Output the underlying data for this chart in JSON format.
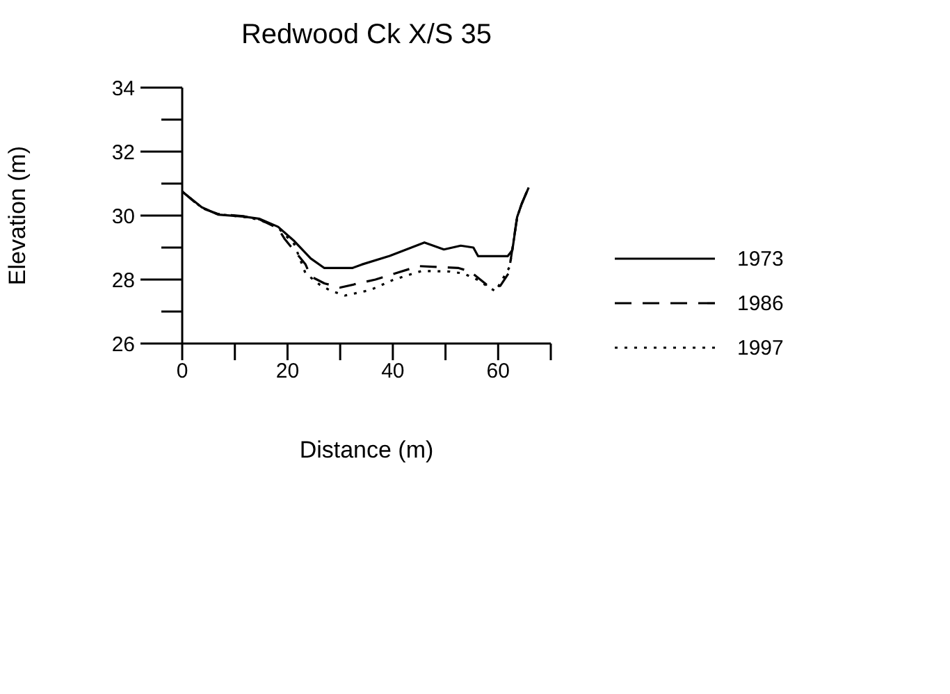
{
  "chart_data": {
    "type": "line",
    "title": "Redwood Ck X/S 35",
    "xlabel": "Distance (m)",
    "ylabel": "Elevation (m)",
    "xlim": [
      0,
      70
    ],
    "xticks": [
      0,
      {
        "value": 10,
        "label": null
      },
      20,
      {
        "value": 30,
        "label": null
      },
      40,
      {
        "value": 50,
        "label": null
      },
      60,
      {
        "value": 70,
        "label": null
      }
    ],
    "ylim": [
      26,
      34
    ],
    "yticks": [
      26,
      {
        "value": 27,
        "label": null
      },
      28,
      {
        "value": 29,
        "label": null
      },
      30,
      {
        "value": 31,
        "label": null
      },
      32,
      {
        "value": 33,
        "label": null
      },
      34
    ],
    "grid": false,
    "legend": "right",
    "marker": "none",
    "series": [
      {
        "name": "1973",
        "color": "#000000",
        "line_style": "solid",
        "x": [
          0,
          3.7,
          6.8,
          11.6,
          14.7,
          18.2,
          21.3,
          24.4,
          27,
          32.3,
          34.1,
          39.4,
          46,
          49.7,
          52.9,
          55.3,
          56.2,
          61.8,
          62.7,
          63.6,
          64.5,
          65.8
        ],
        "values": [
          30.75,
          30.26,
          30.03,
          29.97,
          29.9,
          29.65,
          29.2,
          28.66,
          28.36,
          28.36,
          28.47,
          28.74,
          29.16,
          28.94,
          29.06,
          29.0,
          28.73,
          28.73,
          28.92,
          29.95,
          30.38,
          30.88
        ]
      },
      {
        "name": "1986",
        "color": "#000000",
        "line_style": "dashed",
        "x": [
          0,
          3.7,
          6.8,
          11.6,
          14.7,
          18.2,
          19.5,
          20.8,
          23.4,
          24.4,
          27,
          30,
          36.7,
          44.9,
          52.5,
          54.7,
          57.8,
          60.4,
          62,
          63.6,
          64.5,
          65.8
        ],
        "values": [
          30.75,
          30.24,
          30.05,
          29.98,
          29.88,
          29.6,
          29.26,
          29.0,
          28.48,
          28.1,
          27.88,
          27.75,
          28.0,
          28.42,
          28.36,
          28.25,
          27.84,
          27.8,
          28.2,
          29.95,
          30.38,
          30.88
        ]
      },
      {
        "name": "1997",
        "color": "#000000",
        "line_style": "dotted",
        "x": [
          0,
          3.7,
          6.8,
          11.6,
          14.7,
          18.2,
          21.3,
          23.4,
          26.1,
          28.2,
          30.9,
          35.7,
          40.2,
          45.5,
          50.8,
          53.4,
          56,
          59.5,
          62.2,
          63.6,
          64.5,
          65.8
        ],
        "values": [
          30.75,
          30.25,
          30.04,
          29.96,
          29.87,
          29.62,
          29.1,
          28.2,
          27.84,
          27.65,
          27.5,
          27.67,
          28.0,
          28.27,
          28.25,
          28.19,
          28.0,
          27.63,
          28.4,
          29.95,
          30.38,
          30.88
        ]
      }
    ]
  }
}
